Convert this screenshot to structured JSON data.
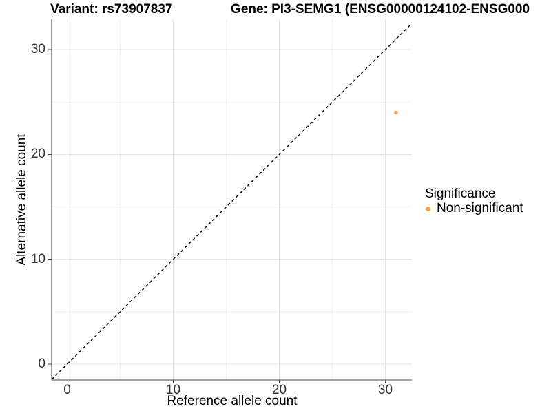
{
  "titles": {
    "variant": "Variant: rs73907837",
    "gene": "Gene: PI3-SEMG1 (ENSG00000124102-ENSG000"
  },
  "chart_data": {
    "type": "scatter",
    "xlabel": "Reference allele count",
    "ylabel": "Alternative allele count",
    "xlim": [
      -1.46,
      32.5
    ],
    "ylim": [
      -1.51,
      32.9
    ],
    "xticks": [
      0,
      10,
      20,
      30
    ],
    "yticks": [
      0,
      10,
      20,
      30
    ],
    "xticks_minor": [
      5,
      15,
      25
    ],
    "yticks_minor": [
      5,
      15,
      25
    ],
    "grid": "major+minor",
    "reference_line": {
      "type": "identity y=x",
      "style": "dashed",
      "color": "#000000"
    },
    "series": [
      {
        "name": "Non-significant",
        "color": "#F9A242",
        "points": [
          {
            "x": 31,
            "y": 24
          }
        ]
      }
    ],
    "legend": {
      "title": "Significance",
      "position": "right",
      "items": [
        {
          "label": "Non-significant",
          "color": "#F9A242"
        }
      ]
    }
  },
  "colors": {
    "background": "#FFFFFF",
    "axis_line": "#404040",
    "tick_mark": "#404040",
    "tick_label": "#333333",
    "grid_major": "#E4E4E4",
    "grid_minor": "#F2F2F2"
  }
}
